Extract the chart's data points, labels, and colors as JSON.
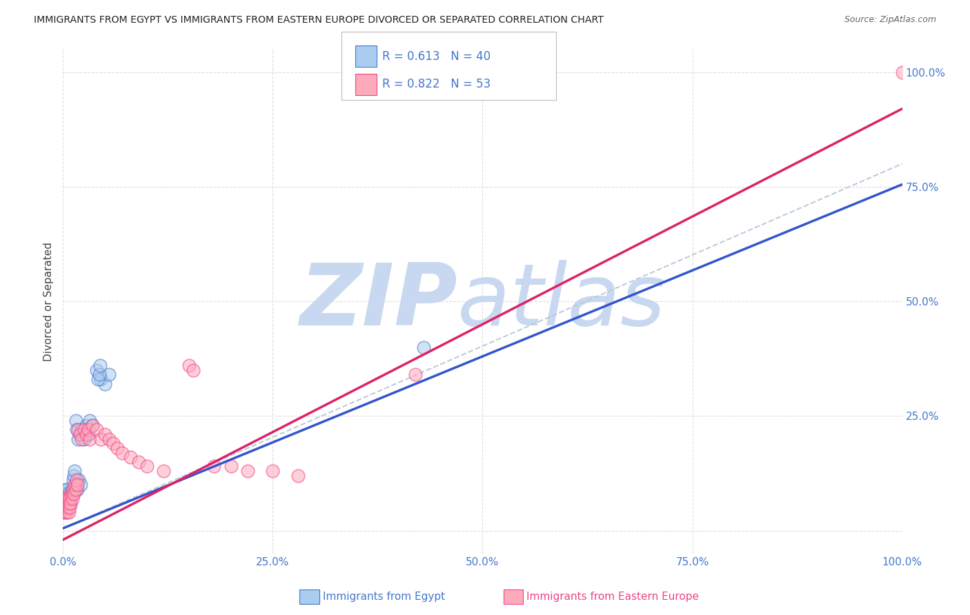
{
  "title": "IMMIGRANTS FROM EGYPT VS IMMIGRANTS FROM EASTERN EUROPE DIVORCED OR SEPARATED CORRELATION CHART",
  "source": "Source: ZipAtlas.com",
  "ylabel": "Divorced or Separated",
  "xlabel_blue": "Immigrants from Egypt",
  "xlabel_pink": "Immigrants from Eastern Europe",
  "legend_blue_R": "R = 0.613",
  "legend_blue_N": "N = 40",
  "legend_pink_R": "R = 0.822",
  "legend_pink_N": "N = 53",
  "blue_fill": "#aaccee",
  "blue_edge": "#4477cc",
  "pink_fill": "#ffaabb",
  "pink_edge": "#ee4488",
  "line_blue": "#3355cc",
  "line_pink": "#dd2266",
  "line_dashed_color": "#bbccdd",
  "title_color": "#222222",
  "tick_color": "#4477cc",
  "watermark_zip_color": "#c8d8f0",
  "watermark_atlas_color": "#c8d8f0",
  "blue_scatter_x": [
    0.001,
    0.002,
    0.002,
    0.003,
    0.003,
    0.004,
    0.004,
    0.005,
    0.005,
    0.006,
    0.007,
    0.008,
    0.009,
    0.01,
    0.011,
    0.012,
    0.013,
    0.014,
    0.015,
    0.016,
    0.018,
    0.02,
    0.022,
    0.025,
    0.028,
    0.03,
    0.032,
    0.015,
    0.017,
    0.019,
    0.021,
    0.035,
    0.04,
    0.045,
    0.05,
    0.055,
    0.042,
    0.043,
    0.044,
    0.43
  ],
  "blue_scatter_y": [
    0.05,
    0.08,
    0.07,
    0.09,
    0.06,
    0.08,
    0.05,
    0.07,
    0.09,
    0.06,
    0.08,
    0.07,
    0.06,
    0.09,
    0.08,
    0.11,
    0.12,
    0.13,
    0.24,
    0.22,
    0.2,
    0.21,
    0.22,
    0.2,
    0.23,
    0.21,
    0.24,
    0.1,
    0.09,
    0.11,
    0.1,
    0.23,
    0.35,
    0.33,
    0.32,
    0.34,
    0.33,
    0.34,
    0.36,
    0.4
  ],
  "pink_scatter_x": [
    0.001,
    0.001,
    0.002,
    0.002,
    0.003,
    0.003,
    0.004,
    0.004,
    0.005,
    0.005,
    0.006,
    0.006,
    0.007,
    0.007,
    0.008,
    0.008,
    0.009,
    0.01,
    0.011,
    0.012,
    0.013,
    0.014,
    0.015,
    0.016,
    0.017,
    0.018,
    0.02,
    0.022,
    0.025,
    0.028,
    0.03,
    0.032,
    0.035,
    0.04,
    0.045,
    0.05,
    0.055,
    0.06,
    0.065,
    0.07,
    0.08,
    0.09,
    0.1,
    0.12,
    0.15,
    0.155,
    0.18,
    0.2,
    0.22,
    0.25,
    0.28,
    0.42,
    1.0
  ],
  "pink_scatter_y": [
    0.04,
    0.06,
    0.05,
    0.07,
    0.04,
    0.06,
    0.05,
    0.07,
    0.04,
    0.06,
    0.05,
    0.07,
    0.04,
    0.06,
    0.05,
    0.07,
    0.06,
    0.08,
    0.07,
    0.09,
    0.08,
    0.1,
    0.09,
    0.11,
    0.1,
    0.22,
    0.21,
    0.2,
    0.22,
    0.21,
    0.22,
    0.2,
    0.23,
    0.22,
    0.2,
    0.21,
    0.2,
    0.19,
    0.18,
    0.17,
    0.16,
    0.15,
    0.14,
    0.13,
    0.36,
    0.35,
    0.14,
    0.14,
    0.13,
    0.13,
    0.12,
    0.34,
    1.0
  ],
  "blue_line_x0": 0.0,
  "blue_line_x1": 1.0,
  "blue_line_y0": 0.005,
  "blue_line_y1": 0.755,
  "pink_line_x0": 0.0,
  "pink_line_x1": 1.0,
  "pink_line_y0": -0.02,
  "pink_line_y1": 0.92,
  "dash_line_x0": 0.0,
  "dash_line_x1": 1.0,
  "dash_line_y0": 0.005,
  "dash_line_y1": 0.8,
  "xlim": [
    0.0,
    1.0
  ],
  "ylim": [
    -0.05,
    1.05
  ],
  "xtick_vals": [
    0.0,
    0.25,
    0.5,
    0.75,
    1.0
  ],
  "xtick_labels": [
    "0.0%",
    "25.0%",
    "50.0%",
    "75.0%",
    "100.0%"
  ],
  "ytick_vals": [
    0.25,
    0.5,
    0.75,
    1.0
  ],
  "ytick_labels": [
    "25.0%",
    "50.0%",
    "75.0%",
    "100.0%"
  ],
  "grid_color": "#dddddd",
  "fig_width": 14.06,
  "fig_height": 8.92,
  "scatter_size": 180,
  "scatter_alpha": 0.55
}
